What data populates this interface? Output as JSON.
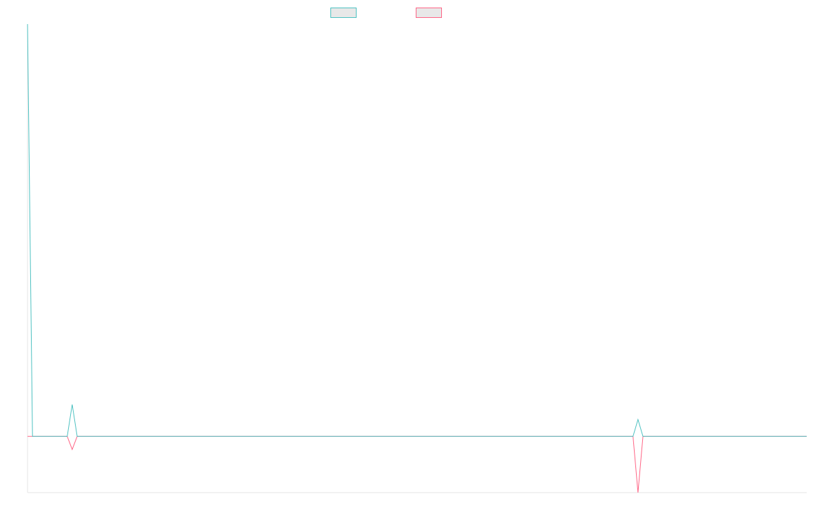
{
  "chart_data": {
    "type": "line",
    "title": "",
    "xlabel": "",
    "ylabel": "",
    "grid": false,
    "legend_placement": "top-center",
    "ylim": [
      -30,
      220
    ],
    "x": [
      0,
      1,
      2,
      3,
      4,
      5,
      6,
      7,
      8,
      9,
      10,
      11,
      12,
      13,
      14,
      15,
      16,
      17,
      18,
      19,
      20,
      21,
      22,
      23,
      24,
      25,
      26,
      27,
      28,
      29,
      30,
      31,
      32,
      33,
      34,
      35,
      36,
      37,
      38,
      39,
      40,
      41,
      42,
      43,
      44,
      45,
      46,
      47,
      48,
      49,
      50,
      51,
      52,
      53,
      54,
      55,
      56,
      57,
      58,
      59,
      60,
      61,
      62,
      63,
      64,
      65,
      66,
      67,
      68,
      69,
      70,
      71,
      72,
      73,
      74,
      75,
      76,
      77,
      78,
      79,
      80,
      81,
      82,
      83,
      84,
      85,
      86,
      87,
      88,
      89,
      90,
      91,
      92,
      93,
      94,
      95,
      96,
      97,
      98,
      99,
      100,
      101,
      102,
      103,
      104,
      105,
      106,
      107,
      108,
      109,
      110,
      111,
      112,
      113,
      114,
      115,
      116,
      117,
      118,
      119,
      120,
      121,
      122,
      123,
      124,
      125,
      126,
      127,
      128,
      129,
      130,
      131,
      132,
      133,
      134,
      135,
      136,
      137,
      138,
      139,
      140,
      141,
      142,
      143,
      144,
      145,
      146,
      147,
      148,
      149,
      150,
      151,
      152,
      153,
      154,
      155,
      156,
      157
    ],
    "series": [
      {
        "name": "",
        "color": "#4bc0c0",
        "values": [
          220,
          0,
          0,
          0,
          0,
          0,
          0,
          0,
          0,
          17,
          0,
          0,
          0,
          0,
          0,
          0,
          0,
          0,
          0,
          0,
          0,
          0,
          0,
          0,
          0,
          0,
          0,
          0,
          0,
          0,
          0,
          0,
          0,
          0,
          0,
          0,
          0,
          0,
          0,
          0,
          0,
          0,
          0,
          0,
          0,
          0,
          0,
          0,
          0,
          0,
          0,
          0,
          0,
          0,
          0,
          0,
          0,
          0,
          0,
          0,
          0,
          0,
          0,
          0,
          0,
          0,
          0,
          0,
          0,
          0,
          0,
          0,
          0,
          0,
          0,
          0,
          0,
          0,
          0,
          0,
          0,
          0,
          0,
          0,
          0,
          0,
          0,
          0,
          0,
          0,
          0,
          0,
          0,
          0,
          0,
          0,
          0,
          0,
          0,
          0,
          0,
          0,
          0,
          0,
          0,
          0,
          0,
          0,
          0,
          0,
          0,
          0,
          0,
          0,
          0,
          0,
          0,
          0,
          0,
          0,
          0,
          0,
          0,
          9,
          0,
          0,
          0,
          0,
          0,
          0,
          0,
          0,
          0,
          0,
          0,
          0,
          0,
          0,
          0,
          0,
          0,
          0,
          0,
          0,
          0,
          0,
          0,
          0,
          0,
          0,
          0,
          0,
          0,
          0,
          0,
          0,
          0,
          0
        ]
      },
      {
        "name": "",
        "color": "#ff6384",
        "values": [
          0,
          0,
          0,
          0,
          0,
          0,
          0,
          0,
          0,
          -7,
          0,
          0,
          0,
          0,
          0,
          0,
          0,
          0,
          0,
          0,
          0,
          0,
          0,
          0,
          0,
          0,
          0,
          0,
          0,
          0,
          0,
          0,
          0,
          0,
          0,
          0,
          0,
          0,
          0,
          0,
          0,
          0,
          0,
          0,
          0,
          0,
          0,
          0,
          0,
          0,
          0,
          0,
          0,
          0,
          0,
          0,
          0,
          0,
          0,
          0,
          0,
          0,
          0,
          0,
          0,
          0,
          0,
          0,
          0,
          0,
          0,
          0,
          0,
          0,
          0,
          0,
          0,
          0,
          0,
          0,
          0,
          0,
          0,
          0,
          0,
          0,
          0,
          0,
          0,
          0,
          0,
          0,
          0,
          0,
          0,
          0,
          0,
          0,
          0,
          0,
          0,
          0,
          0,
          0,
          0,
          0,
          0,
          0,
          0,
          0,
          0,
          0,
          0,
          0,
          0,
          0,
          0,
          0,
          0,
          0,
          0,
          0,
          0,
          -30,
          0,
          0,
          0,
          0,
          0,
          0,
          0,
          0,
          0,
          0,
          0,
          0,
          0,
          0,
          0,
          0,
          0,
          0,
          0,
          0,
          0,
          0,
          0,
          0,
          0,
          0,
          0,
          0,
          0,
          0,
          0,
          0,
          0,
          0
        ]
      }
    ]
  }
}
